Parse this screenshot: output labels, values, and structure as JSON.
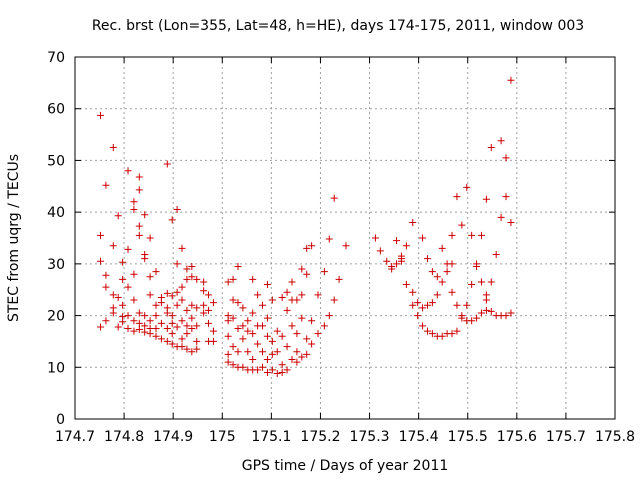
{
  "chart_data": {
    "type": "scatter",
    "title": "Rec. brst (Lon=355, Lat=48, h=HE), days 174-175, 2011, window 003",
    "xlabel": "GPS time / Days of year 2011",
    "ylabel": "STEC from uqrg / TECUs",
    "xlim": [
      174.7,
      175.8
    ],
    "ylim": [
      0,
      70
    ],
    "xticks": [
      "174.7",
      "174.8",
      "174.9",
      "175",
      "175.1",
      "175.2",
      "175.3",
      "175.4",
      "175.5",
      "175.6",
      "175.7",
      "175.8"
    ],
    "yticks": [
      "0",
      "10",
      "20",
      "30",
      "40",
      "50",
      "60",
      "70"
    ],
    "grid": true,
    "marker": "plus",
    "color": "#cc0000",
    "points": [
      [
        174.752,
        58.7
      ],
      [
        174.752,
        35.5
      ],
      [
        174.752,
        30.5
      ],
      [
        174.752,
        17.8
      ],
      [
        174.763,
        45.2
      ],
      [
        174.763,
        27.8
      ],
      [
        174.763,
        25.5
      ],
      [
        174.763,
        19.0
      ],
      [
        174.778,
        52.5
      ],
      [
        174.778,
        33.5
      ],
      [
        174.778,
        24.0
      ],
      [
        174.778,
        21.5
      ],
      [
        174.778,
        20.5
      ],
      [
        174.788,
        39.3
      ],
      [
        174.788,
        23.5
      ],
      [
        174.788,
        17.8
      ],
      [
        174.797,
        30.3
      ],
      [
        174.797,
        27.0
      ],
      [
        174.797,
        22.0
      ],
      [
        174.797,
        19.8
      ],
      [
        174.797,
        18.8
      ],
      [
        174.808,
        48.0
      ],
      [
        174.808,
        32.8
      ],
      [
        174.808,
        25.5
      ],
      [
        174.808,
        20.0
      ],
      [
        174.808,
        17.5
      ],
      [
        174.82,
        42.0
      ],
      [
        174.82,
        40.5
      ],
      [
        174.82,
        28.0
      ],
      [
        174.82,
        23.0
      ],
      [
        174.82,
        19.0
      ],
      [
        174.82,
        17.0
      ],
      [
        174.831,
        46.8
      ],
      [
        174.831,
        44.3
      ],
      [
        174.831,
        37.3
      ],
      [
        174.831,
        35.5
      ],
      [
        174.831,
        20.5
      ],
      [
        174.831,
        18.5
      ],
      [
        174.831,
        17.3
      ],
      [
        174.842,
        39.5
      ],
      [
        174.842,
        31.8
      ],
      [
        174.842,
        31.0
      ],
      [
        174.842,
        20.0
      ],
      [
        174.842,
        18.0
      ],
      [
        174.842,
        16.8
      ],
      [
        174.853,
        35.0
      ],
      [
        174.853,
        27.5
      ],
      [
        174.853,
        24.0
      ],
      [
        174.853,
        19.0
      ],
      [
        174.853,
        17.5
      ],
      [
        174.853,
        16.5
      ],
      [
        174.865,
        28.5
      ],
      [
        174.865,
        22.0
      ],
      [
        174.865,
        20.0
      ],
      [
        174.865,
        17.5
      ],
      [
        174.865,
        16.0
      ],
      [
        174.876,
        23.5
      ],
      [
        174.876,
        22.5
      ],
      [
        174.876,
        18.5
      ],
      [
        174.876,
        15.5
      ],
      [
        174.888,
        49.3
      ],
      [
        174.888,
        24.3
      ],
      [
        174.888,
        21.5
      ],
      [
        174.888,
        20.5
      ],
      [
        174.888,
        17.5
      ],
      [
        174.888,
        15.0
      ],
      [
        174.898,
        38.5
      ],
      [
        174.898,
        23.8
      ],
      [
        174.898,
        20.0
      ],
      [
        174.898,
        18.5
      ],
      [
        174.898,
        16.5
      ],
      [
        174.898,
        14.5
      ],
      [
        174.908,
        40.5
      ],
      [
        174.908,
        30.0
      ],
      [
        174.908,
        24.5
      ],
      [
        174.908,
        22.0
      ],
      [
        174.908,
        17.8
      ],
      [
        174.908,
        14.0
      ],
      [
        174.918,
        33.0
      ],
      [
        174.918,
        25.5
      ],
      [
        174.918,
        23.0
      ],
      [
        174.918,
        19.0
      ],
      [
        174.918,
        15.5
      ],
      [
        174.918,
        14.0
      ],
      [
        174.928,
        29.0
      ],
      [
        174.928,
        27.0
      ],
      [
        174.928,
        21.0
      ],
      [
        174.928,
        18.0
      ],
      [
        174.928,
        16.5
      ],
      [
        174.928,
        13.5
      ],
      [
        174.938,
        29.5
      ],
      [
        174.938,
        27.5
      ],
      [
        174.938,
        22.0
      ],
      [
        174.938,
        19.5
      ],
      [
        174.938,
        17.5
      ],
      [
        174.938,
        13.0
      ],
      [
        174.948,
        27.0
      ],
      [
        174.948,
        21.5
      ],
      [
        174.948,
        18.0
      ],
      [
        174.948,
        15.0
      ],
      [
        174.948,
        13.5
      ],
      [
        174.962,
        26.5
      ],
      [
        174.962,
        24.8
      ],
      [
        174.962,
        22.0
      ],
      [
        174.962,
        20.5
      ],
      [
        174.972,
        24.0
      ],
      [
        174.972,
        21.0
      ],
      [
        174.972,
        18.5
      ],
      [
        174.972,
        15.0
      ],
      [
        174.982,
        22.5
      ],
      [
        174.982,
        17.0
      ],
      [
        174.982,
        15.0
      ],
      [
        175.012,
        26.5
      ],
      [
        175.012,
        20.0
      ],
      [
        175.012,
        19.0
      ],
      [
        175.012,
        16.0
      ],
      [
        175.012,
        12.5
      ],
      [
        175.012,
        11.0
      ],
      [
        175.022,
        27.0
      ],
      [
        175.022,
        23.0
      ],
      [
        175.022,
        19.5
      ],
      [
        175.022,
        14.0
      ],
      [
        175.022,
        10.5
      ],
      [
        175.032,
        29.5
      ],
      [
        175.032,
        22.5
      ],
      [
        175.032,
        17.5
      ],
      [
        175.032,
        13.0
      ],
      [
        175.032,
        10.0
      ],
      [
        175.042,
        21.5
      ],
      [
        175.042,
        18.0
      ],
      [
        175.042,
        15.5
      ],
      [
        175.042,
        10.0
      ],
      [
        175.052,
        19.0
      ],
      [
        175.052,
        17.0
      ],
      [
        175.052,
        13.0
      ],
      [
        175.052,
        9.5
      ],
      [
        175.062,
        27.0
      ],
      [
        175.062,
        20.5
      ],
      [
        175.062,
        16.5
      ],
      [
        175.062,
        11.5
      ],
      [
        175.062,
        9.5
      ],
      [
        175.072,
        24.0
      ],
      [
        175.072,
        18.0
      ],
      [
        175.072,
        14.5
      ],
      [
        175.072,
        9.5
      ],
      [
        175.082,
        22.0
      ],
      [
        175.082,
        18.0
      ],
      [
        175.082,
        13.0
      ],
      [
        175.082,
        10.0
      ],
      [
        175.092,
        26.0
      ],
      [
        175.092,
        19.5
      ],
      [
        175.092,
        16.0
      ],
      [
        175.092,
        11.5
      ],
      [
        175.092,
        9.0
      ],
      [
        175.102,
        23.0
      ],
      [
        175.102,
        15.0
      ],
      [
        175.102,
        12.5
      ],
      [
        175.102,
        9.5
      ],
      [
        175.112,
        17.0
      ],
      [
        175.112,
        13.0
      ],
      [
        175.112,
        8.8
      ],
      [
        175.122,
        23.5
      ],
      [
        175.122,
        16.0
      ],
      [
        175.122,
        10.5
      ],
      [
        175.122,
        9.0
      ],
      [
        175.132,
        24.5
      ],
      [
        175.132,
        21.0
      ],
      [
        175.132,
        14.0
      ],
      [
        175.132,
        9.5
      ],
      [
        175.142,
        26.5
      ],
      [
        175.142,
        23.0
      ],
      [
        175.142,
        18.0
      ],
      [
        175.142,
        11.5
      ],
      [
        175.152,
        23.0
      ],
      [
        175.152,
        16.5
      ],
      [
        175.152,
        13.0
      ],
      [
        175.152,
        11.0
      ],
      [
        175.162,
        29.0
      ],
      [
        175.162,
        24.0
      ],
      [
        175.162,
        19.5
      ],
      [
        175.162,
        12.0
      ],
      [
        175.172,
        28.0
      ],
      [
        175.172,
        33.0
      ],
      [
        175.172,
        15.5
      ],
      [
        175.172,
        12.5
      ],
      [
        175.182,
        33.5
      ],
      [
        175.182,
        19.0
      ],
      [
        175.182,
        14.5
      ],
      [
        175.195,
        24.0
      ],
      [
        175.195,
        16.5
      ],
      [
        175.208,
        28.5
      ],
      [
        175.208,
        18.0
      ],
      [
        175.218,
        34.8
      ],
      [
        175.218,
        20.0
      ],
      [
        175.228,
        42.7
      ],
      [
        175.228,
        23.0
      ],
      [
        175.238,
        27.0
      ],
      [
        175.252,
        33.5
      ],
      [
        175.312,
        35.0
      ],
      [
        175.322,
        32.5
      ],
      [
        175.335,
        30.5
      ],
      [
        175.345,
        29.5
      ],
      [
        175.345,
        29.0
      ],
      [
        175.355,
        34.5
      ],
      [
        175.355,
        30.0
      ],
      [
        175.365,
        31.5
      ],
      [
        175.365,
        31.0
      ],
      [
        175.365,
        30.5
      ],
      [
        175.375,
        33.5
      ],
      [
        175.375,
        26.0
      ],
      [
        175.388,
        38.0
      ],
      [
        175.388,
        24.5
      ],
      [
        175.388,
        22.0
      ],
      [
        175.398,
        22.5
      ],
      [
        175.398,
        20.0
      ],
      [
        175.408,
        35.0
      ],
      [
        175.408,
        21.5
      ],
      [
        175.408,
        18.0
      ],
      [
        175.418,
        31.0
      ],
      [
        175.418,
        22.0
      ],
      [
        175.418,
        17.0
      ],
      [
        175.428,
        28.5
      ],
      [
        175.428,
        22.5
      ],
      [
        175.428,
        16.5
      ],
      [
        175.438,
        27.5
      ],
      [
        175.438,
        24.0
      ],
      [
        175.438,
        16.0
      ],
      [
        175.448,
        33.0
      ],
      [
        175.448,
        26.5
      ],
      [
        175.448,
        16.0
      ],
      [
        175.458,
        30.0
      ],
      [
        175.458,
        28.5
      ],
      [
        175.458,
        16.5
      ],
      [
        175.468,
        35.5
      ],
      [
        175.468,
        24.5
      ],
      [
        175.468,
        16.5
      ],
      [
        175.468,
        30.0
      ],
      [
        175.478,
        43.0
      ],
      [
        175.478,
        22.0
      ],
      [
        175.478,
        17.0
      ],
      [
        175.488,
        37.5
      ],
      [
        175.488,
        20.0
      ],
      [
        175.488,
        19.5
      ],
      [
        175.498,
        44.8
      ],
      [
        175.498,
        22.0
      ],
      [
        175.498,
        19.0
      ],
      [
        175.508,
        35.5
      ],
      [
        175.508,
        26.0
      ],
      [
        175.508,
        19.0
      ],
      [
        175.518,
        30.0
      ],
      [
        175.518,
        29.5
      ],
      [
        175.518,
        19.5
      ],
      [
        175.528,
        35.5
      ],
      [
        175.528,
        26.5
      ],
      [
        175.528,
        20.5
      ],
      [
        175.538,
        42.5
      ],
      [
        175.538,
        24.0
      ],
      [
        175.538,
        23.0
      ],
      [
        175.538,
        21.0
      ],
      [
        175.548,
        52.5
      ],
      [
        175.548,
        26.5
      ],
      [
        175.548,
        20.8
      ],
      [
        175.558,
        31.8
      ],
      [
        175.558,
        20.0
      ],
      [
        175.568,
        53.8
      ],
      [
        175.568,
        39.0
      ],
      [
        175.568,
        20.0
      ],
      [
        175.578,
        50.5
      ],
      [
        175.578,
        43.0
      ],
      [
        175.578,
        20.0
      ],
      [
        175.588,
        65.5
      ],
      [
        175.588,
        38.0
      ],
      [
        175.588,
        20.5
      ]
    ]
  }
}
